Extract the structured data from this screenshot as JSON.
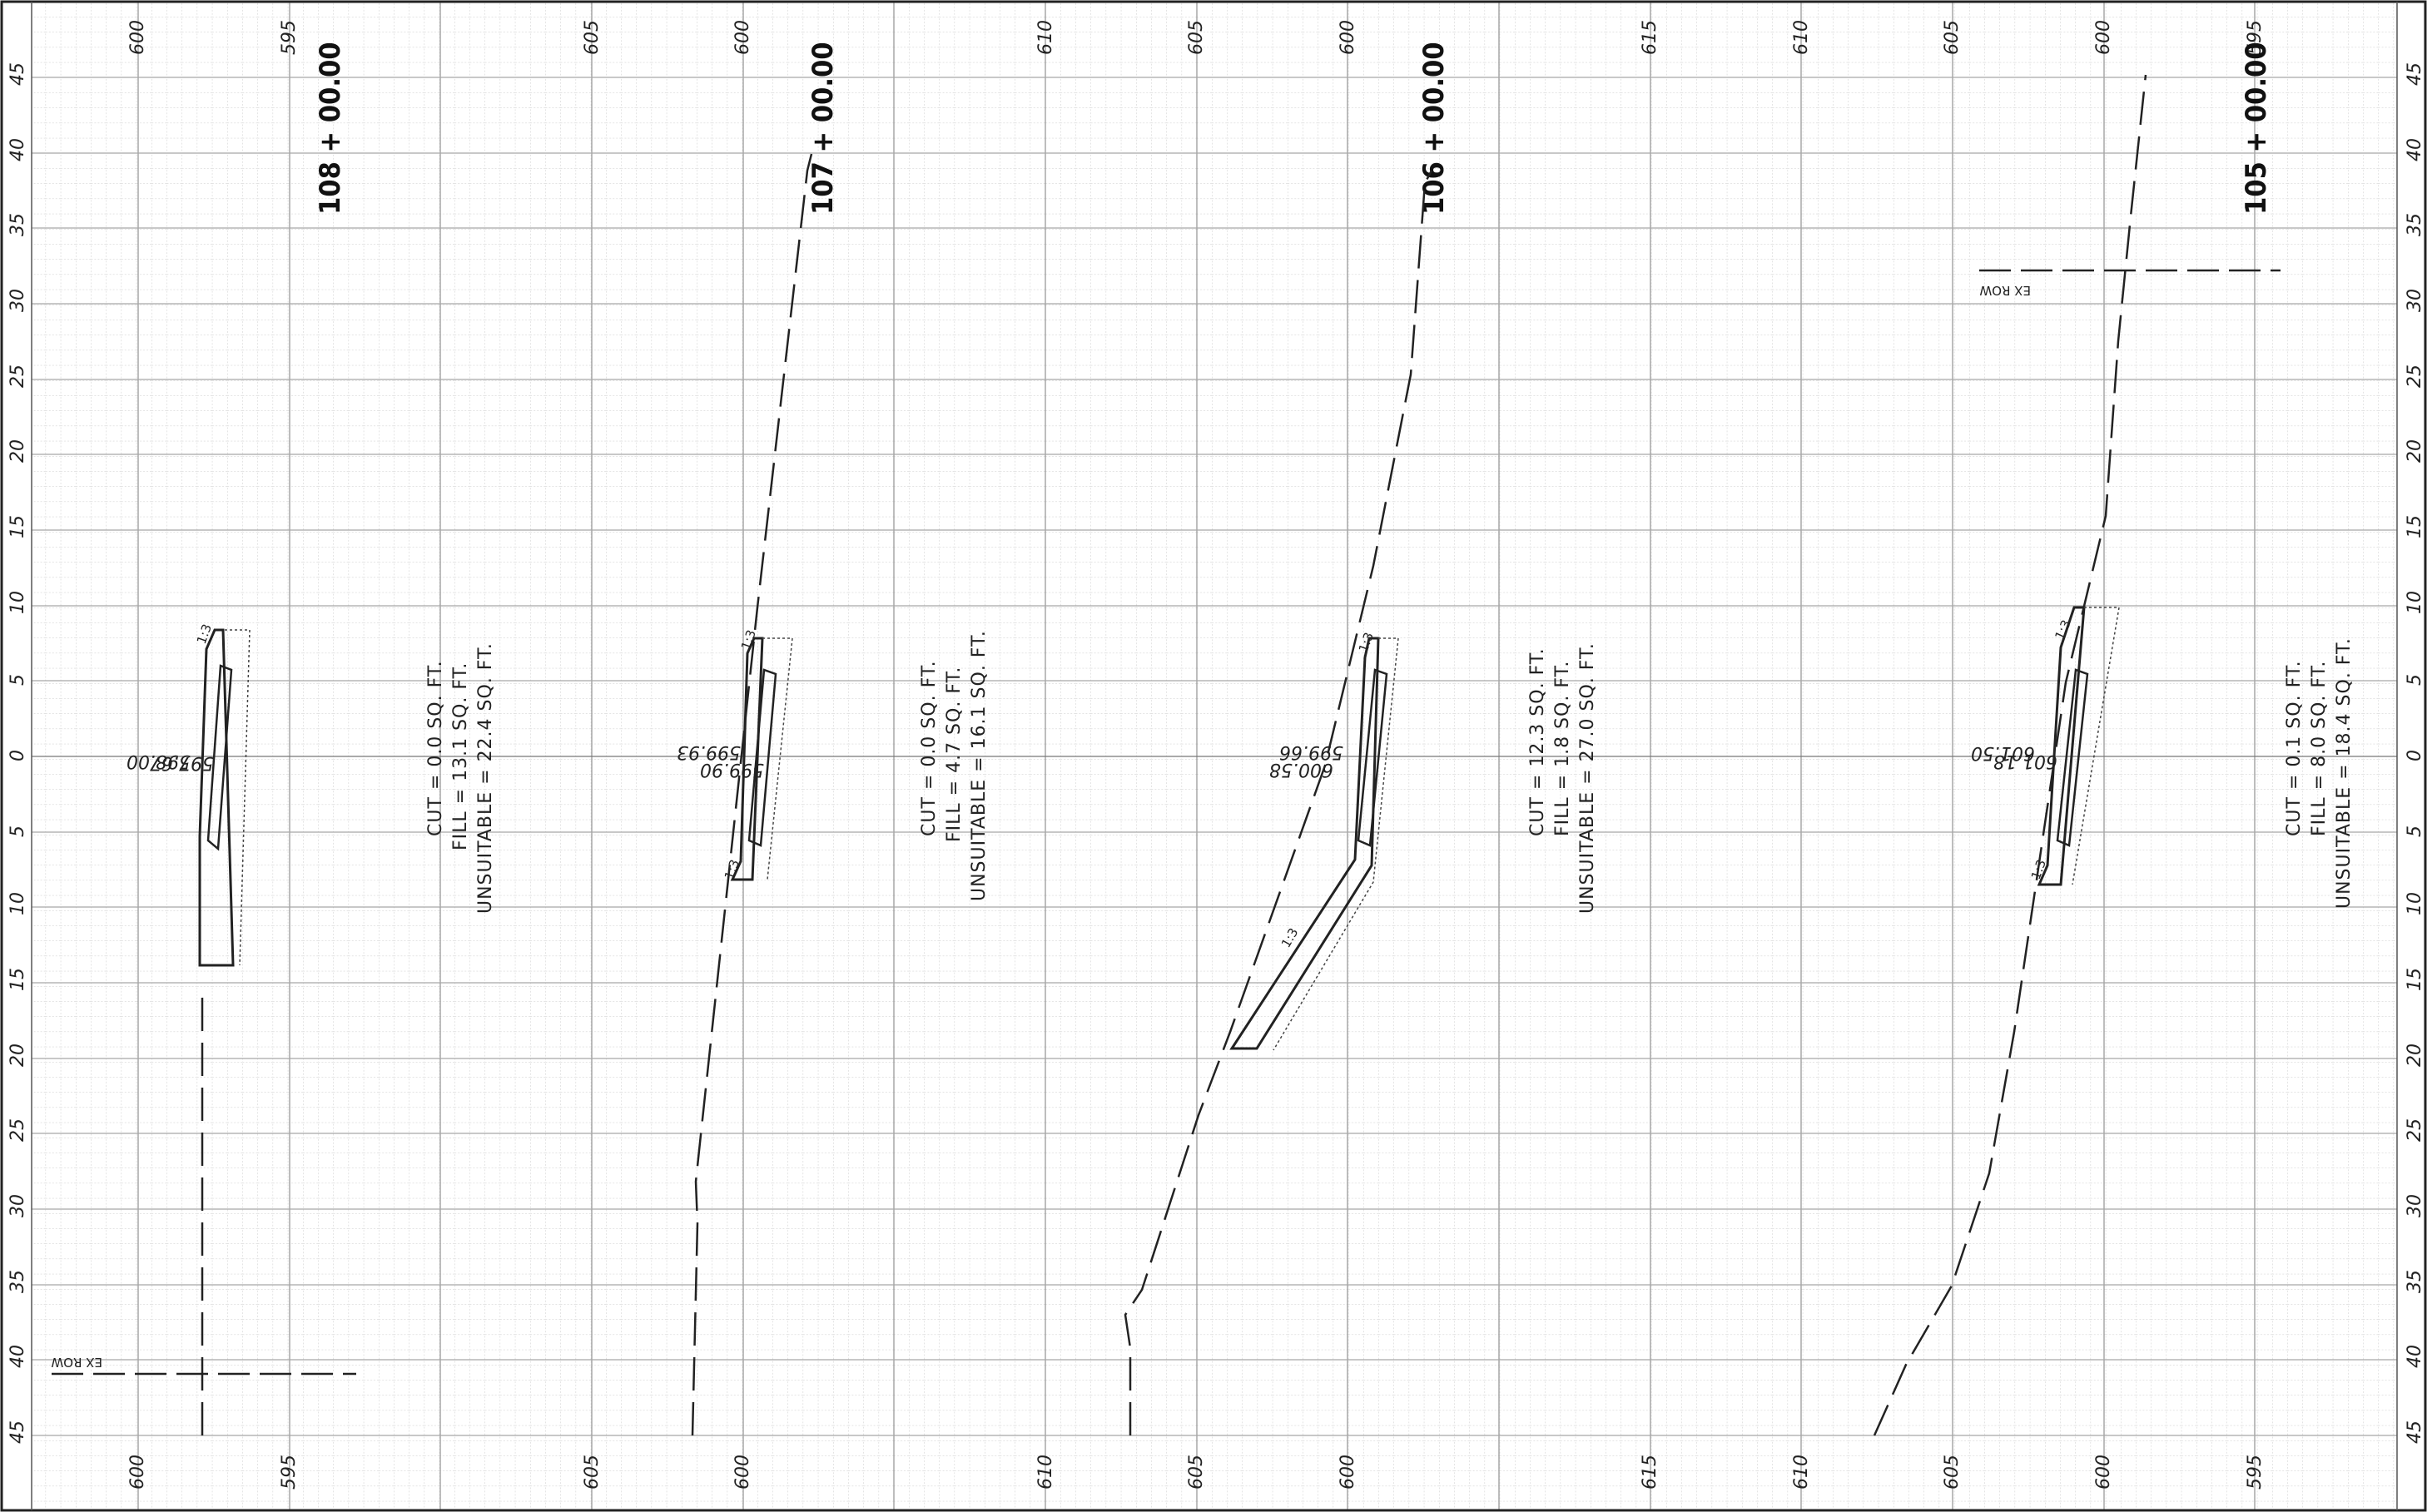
{
  "sheet": {
    "offset_ticks": [
      "45",
      "40",
      "35",
      "30",
      "25",
      "20",
      "15",
      "10",
      "5",
      "0",
      "5",
      "10",
      "15",
      "20",
      "25",
      "30",
      "35",
      "40",
      "45"
    ],
    "sections": [
      {
        "station": "108 + 00.00",
        "elev_ticks": [
          "600",
          "595"
        ],
        "quantities": [
          "CUT = 0.0 SQ. FT.",
          "FILL = 13.1 SQ. FT.",
          "UNSUITABLE = 22.4 SQ. FT."
        ],
        "elev_labels": [
          "598.00",
          "597.67"
        ],
        "ex_row": "EX ROW",
        "slope_labels": [
          "1:3"
        ]
      },
      {
        "station": "107 + 00.00",
        "elev_ticks": [
          "605",
          "600"
        ],
        "quantities": [
          "CUT = 0.0 SQ. FT.",
          "FILL = 4.7 SQ. FT.",
          "UNSUITABLE = 16.1 SQ. FT."
        ],
        "elev_labels": [
          "599.93",
          "599.90"
        ],
        "slope_labels": [
          "1:3",
          "1:3"
        ]
      },
      {
        "station": "106 + 00.00",
        "elev_ticks": [
          "610",
          "605",
          "600"
        ],
        "quantities": [
          "CUT = 12.3 SQ. FT.",
          "FILL = 1.8 SQ. FT.",
          "UNSUITABLE = 27.0 SQ. FT."
        ],
        "elev_labels": [
          "599.66",
          "600.58"
        ],
        "slope_labels": [
          "1:3",
          "1:3"
        ]
      },
      {
        "station": "105 + 00.00",
        "elev_ticks": [
          "615",
          "610",
          "605",
          "600",
          "595"
        ],
        "quantities": [
          "CUT = 0.1 SQ. FT.",
          "FILL = 8.0 SQ. FT.",
          "UNSUITABLE = 18.4 SQ. FT."
        ],
        "elev_labels": [
          "601.18",
          "601.50"
        ],
        "ex_row": "EX ROW",
        "slope_labels": [
          "1:3",
          "1:3"
        ]
      }
    ]
  }
}
